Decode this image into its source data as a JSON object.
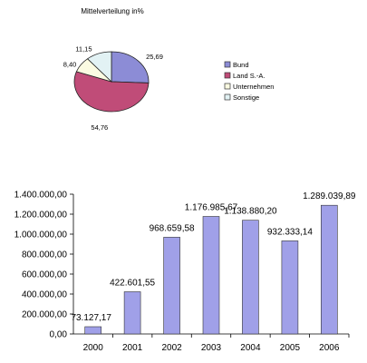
{
  "chart_data": [
    {
      "type": "pie",
      "title": "Mittelverteilung in%",
      "slices": [
        {
          "label": "Bund",
          "value": 25.69,
          "value_label": "25,69",
          "color": "#8c8cd6"
        },
        {
          "label": "Land S.-A.",
          "value": 54.76,
          "value_label": "54,76",
          "color": "#c04c78"
        },
        {
          "label": "Unternehmen",
          "value": 8.4,
          "value_label": "8,40",
          "color": "#fbfbe2"
        },
        {
          "label": "Sonstige",
          "value": 11.15,
          "value_label": "11,15",
          "color": "#e2f2f4"
        }
      ],
      "legend_position": "right"
    },
    {
      "type": "bar",
      "categories": [
        "2000",
        "2001",
        "2002",
        "2003",
        "2004",
        "2005",
        "2006"
      ],
      "values": [
        73127.17,
        422601.55,
        968659.58,
        1176985.67,
        1138880.2,
        932333.14,
        1289039.89
      ],
      "value_labels": [
        "73.127,17",
        "422.601,55",
        "968.659,58",
        "1.176.985,67",
        "1.138.880,20",
        "932.333,14",
        "1.289.039,89"
      ],
      "ylim": [
        0,
        1400000
      ],
      "y_ticks": [
        0,
        200000,
        400000,
        600000,
        800000,
        1000000,
        1200000,
        1400000
      ],
      "y_tick_labels": [
        "0,00",
        "200.000,00",
        "400.000,00",
        "600.000,00",
        "800.000,00",
        "1.000.000,00",
        "1.200.000,00",
        "1.400.000,00"
      ],
      "bar_color": "#a0a0e8",
      "grid": false,
      "title": "",
      "xlabel": "",
      "ylabel": ""
    }
  ]
}
